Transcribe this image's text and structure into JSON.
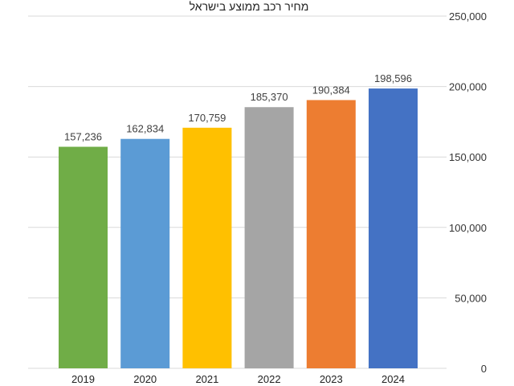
{
  "chart_data": {
    "type": "bar",
    "title": "מחיר רכב ממוצע בישראל",
    "categories": [
      "2019",
      "2020",
      "2021",
      "2022",
      "2023",
      "2024"
    ],
    "values": [
      157236,
      162834,
      170759,
      185370,
      190384,
      198596
    ],
    "value_labels": [
      "157,236",
      "162,834",
      "170,759",
      "185,370",
      "190,384",
      "198,596"
    ],
    "bar_colors": [
      "#70ad47",
      "#5b9bd5",
      "#ffc000",
      "#a5a5a5",
      "#ed7d31",
      "#4472c4"
    ],
    "ylim": [
      0,
      250000
    ],
    "yticks": [
      0,
      50000,
      100000,
      150000,
      200000,
      250000
    ],
    "ytick_labels": [
      "0",
      "50,000",
      "100,000",
      "150,000",
      "200,000",
      "250,000"
    ],
    "y_axis_side": "right",
    "grid": true,
    "legend": "none",
    "xlabel": "",
    "ylabel": ""
  }
}
